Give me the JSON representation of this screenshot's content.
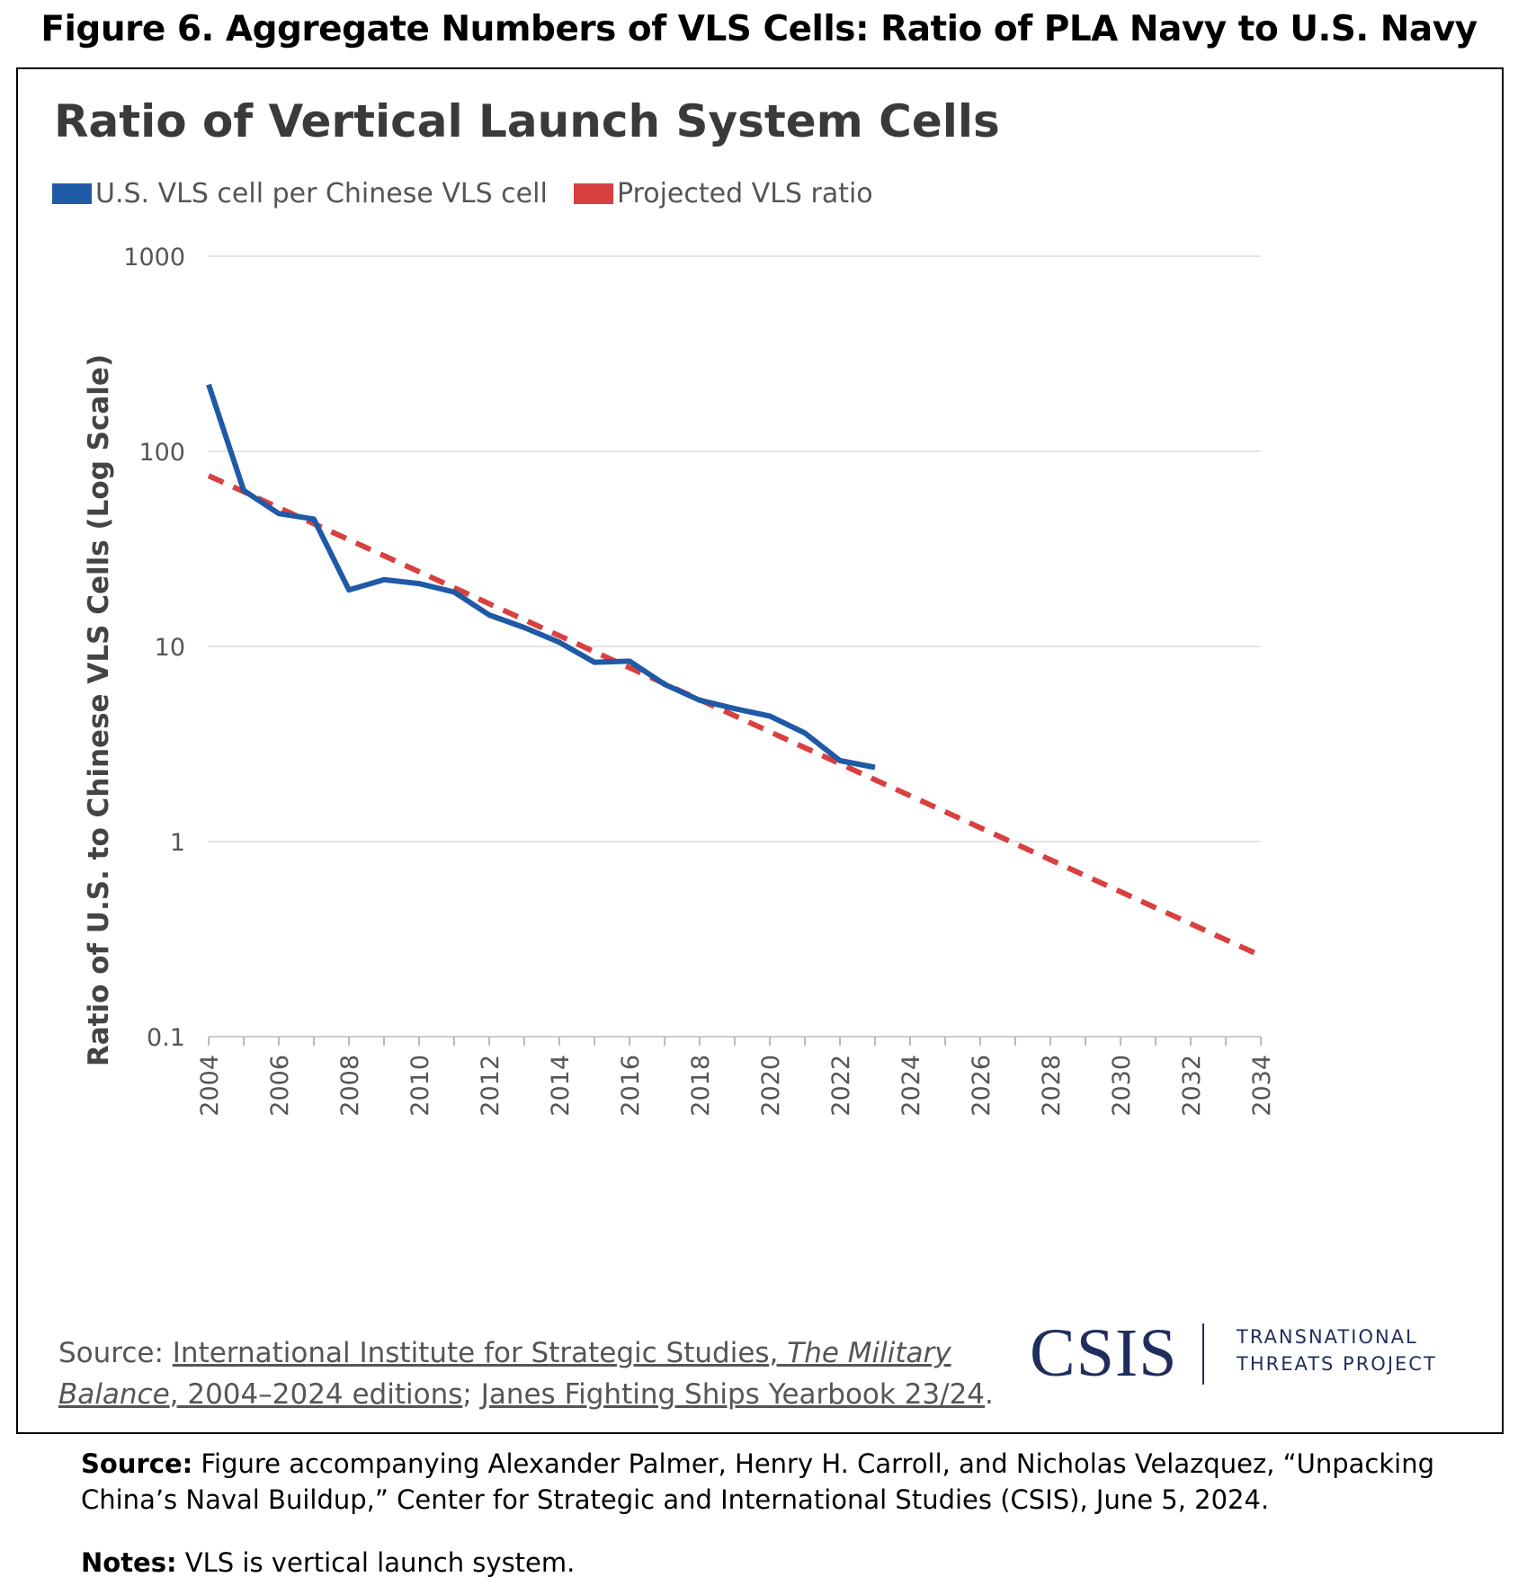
{
  "figure_title": "Figure 6. Aggregate Numbers of VLS Cells: Ratio of PLA Navy to U.S. Navy",
  "chart_data": {
    "type": "line",
    "title": "Ratio of Vertical Launch System Cells",
    "ylabel": "Ratio of U.S. to Chinese VLS Cells (Log Scale)",
    "xlabel": "",
    "yscale": "log",
    "ylim": [
      0.1,
      1000
    ],
    "xlim": [
      2004,
      2034
    ],
    "yticks": [
      0.1,
      1,
      10,
      100,
      1000
    ],
    "ytick_labels": [
      "0.1",
      "1",
      "10",
      "100",
      "1000"
    ],
    "xticks": [
      2004,
      2006,
      2008,
      2010,
      2012,
      2014,
      2016,
      2018,
      2020,
      2022,
      2024,
      2026,
      2028,
      2030,
      2032,
      2034
    ],
    "xtick_labels": [
      "2004",
      "2006",
      "2008",
      "2010",
      "2012",
      "2014",
      "2016",
      "2018",
      "2020",
      "2022",
      "2024",
      "2026",
      "2028",
      "2030",
      "2032",
      "2034"
    ],
    "grid": "horizontal",
    "legend_position": "top-left",
    "series": [
      {
        "name": "U.S. VLS cell per Chinese VLS cell",
        "color": "#1f5aa6",
        "style": "solid",
        "x": [
          2004,
          2005,
          2006,
          2007,
          2008,
          2009,
          2010,
          2011,
          2012,
          2013,
          2014,
          2015,
          2016,
          2017,
          2018,
          2019,
          2020,
          2021,
          2022,
          2023
        ],
        "y": [
          220,
          63,
          48,
          45,
          19.5,
          22,
          21,
          19,
          14.5,
          12.5,
          10.5,
          8.3,
          8.4,
          6.4,
          5.3,
          4.8,
          4.4,
          3.6,
          2.6,
          2.4
        ]
      },
      {
        "name": "Projected VLS ratio",
        "color": "#d94040",
        "style": "dashed",
        "x": [
          2004,
          2034
        ],
        "y": [
          75,
          0.26
        ]
      }
    ]
  },
  "source_label": "Source:",
  "source_link1": "International Institute for Strategic Studies,",
  "source_italic1": "The Military",
  "source_italic2": "Balance",
  "source_link2": ", 2004–2024 editions",
  "source_sep": ";",
  "source_link3": "Janes Fighting Ships Yearbook 23/24",
  "source_end": ".",
  "logo": {
    "name": "CSIS",
    "line1": "TRANSNATIONAL",
    "line2": "THREATS PROJECT"
  },
  "footer": {
    "source_label": "Source:",
    "source_text": " Figure accompanying Alexander Palmer, Henry H. Carroll, and Nicholas Velazquez, “Unpacking China’s Naval Buildup,” Center for Strategic and International Studies (CSIS), June 5, 2024.",
    "notes_label": "Notes:",
    "notes_text": " VLS is vertical launch system."
  }
}
